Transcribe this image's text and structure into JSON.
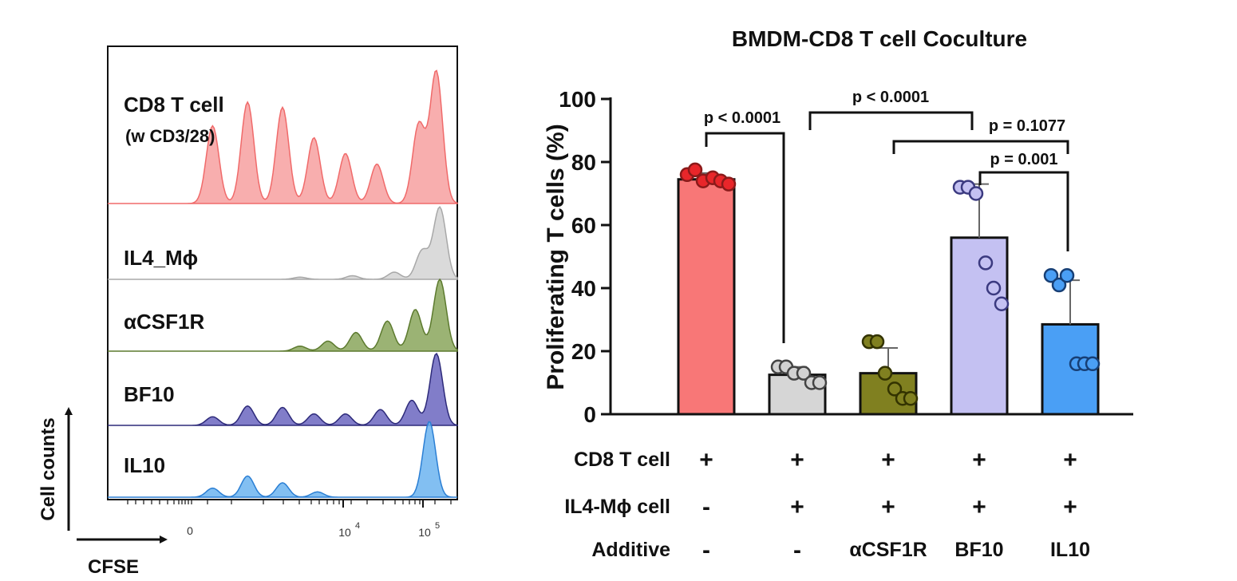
{
  "chart_data": [
    {
      "type": "histogram-stack",
      "xlabel": "CFSE",
      "ylabel": "Cell counts",
      "xaxis": "biexponential",
      "tick_labels": [
        "0",
        "10",
        "4",
        "10",
        "5"
      ],
      "series": [
        {
          "name": "CD8 T cell",
          "subname": "(w CD3/28)",
          "color": "#f06a6a",
          "fill": "#f7a0a0",
          "peaks": [
            {
              "x": 0.3,
              "h": 0.59
            },
            {
              "x": 0.4,
              "h": 0.77
            },
            {
              "x": 0.5,
              "h": 0.73
            },
            {
              "x": 0.59,
              "h": 0.5
            },
            {
              "x": 0.68,
              "h": 0.38
            },
            {
              "x": 0.77,
              "h": 0.3
            },
            {
              "x": 0.89,
              "h": 0.6
            },
            {
              "x": 0.94,
              "h": 1.0
            }
          ]
        },
        {
          "name": "IL4_Mϕ",
          "color": "#a8a8a8",
          "fill": "#d3d3d3",
          "peaks": [
            {
              "x": 0.55,
              "h": 0.03
            },
            {
              "x": 0.7,
              "h": 0.05
            },
            {
              "x": 0.82,
              "h": 0.1
            },
            {
              "x": 0.9,
              "h": 0.4
            },
            {
              "x": 0.95,
              "h": 1.0
            }
          ]
        },
        {
          "name": "αCSF1R",
          "color": "#5c7a2e",
          "fill": "#8aa65c",
          "peaks": [
            {
              "x": 0.55,
              "h": 0.07
            },
            {
              "x": 0.63,
              "h": 0.14
            },
            {
              "x": 0.71,
              "h": 0.26
            },
            {
              "x": 0.8,
              "h": 0.42
            },
            {
              "x": 0.88,
              "h": 0.58
            },
            {
              "x": 0.95,
              "h": 1.0
            }
          ]
        },
        {
          "name": "BF10",
          "color": "#2d2a7a",
          "fill": "#6b66c0",
          "peaks": [
            {
              "x": 0.3,
              "h": 0.12
            },
            {
              "x": 0.4,
              "h": 0.27
            },
            {
              "x": 0.5,
              "h": 0.25
            },
            {
              "x": 0.59,
              "h": 0.16
            },
            {
              "x": 0.68,
              "h": 0.16
            },
            {
              "x": 0.78,
              "h": 0.22
            },
            {
              "x": 0.87,
              "h": 0.35
            },
            {
              "x": 0.94,
              "h": 1.0
            }
          ]
        },
        {
          "name": "IL10",
          "color": "#2b7fd4",
          "fill": "#6cb4f0",
          "peaks": [
            {
              "x": 0.3,
              "h": 0.12
            },
            {
              "x": 0.4,
              "h": 0.28
            },
            {
              "x": 0.5,
              "h": 0.19
            },
            {
              "x": 0.6,
              "h": 0.07
            },
            {
              "x": 0.92,
              "h": 1.0
            }
          ]
        }
      ]
    },
    {
      "type": "bar",
      "title": "BMDM-CD8 T cell Coculture",
      "ylabel": "Proliferating T cells (%)",
      "ylim": [
        0,
        100
      ],
      "yticks": [
        0,
        20,
        40,
        60,
        80,
        100
      ],
      "bars": [
        {
          "mean": 74.5,
          "sd": 2,
          "fill": "#f87777",
          "stroke": "#111111",
          "dots": [
            76,
            77.5,
            74,
            75,
            74,
            73
          ],
          "dot_fill": "#e8262a",
          "dot_stroke": "#8b1a1a"
        },
        {
          "mean": 12.5,
          "sd": 2.5,
          "fill": "#d6d6d6",
          "stroke": "#111111",
          "dots": [
            15,
            15,
            13,
            13,
            10,
            10
          ],
          "dot_fill": "#d2d2d2",
          "dot_stroke": "#444444"
        },
        {
          "mean": 13,
          "sd": 8,
          "fill": "#808020",
          "stroke": "#111111",
          "dots": [
            23,
            23,
            13,
            8,
            5,
            5
          ],
          "dot_fill": "#808020",
          "dot_stroke": "#333300"
        },
        {
          "mean": 56,
          "sd": 17,
          "fill": "#c4c1f2",
          "stroke": "#111111",
          "dots": [
            72,
            72,
            70,
            48,
            40,
            35
          ],
          "dot_fill": "#c4c1f2",
          "dot_stroke": "#3b3a80"
        },
        {
          "mean": 28.5,
          "sd": 14,
          "fill": "#4a9ff5",
          "stroke": "#111111",
          "dots": [
            44,
            41,
            44,
            16,
            16,
            16
          ],
          "dot_fill": "#4a9ff5",
          "dot_stroke": "#173f75"
        }
      ],
      "stat_annotations": [
        {
          "label": "p < 0.0001",
          "from_bar": 0,
          "to_bar": 1
        },
        {
          "label": "p < 0.0001",
          "from_bar": 1,
          "to_bar": 3
        },
        {
          "label": "p = 0.1077",
          "from_bar": 2,
          "to_bar": 4
        },
        {
          "label": "p = 0.001",
          "from_bar": 3,
          "to_bar": 4
        }
      ],
      "conditions": [
        {
          "label": "CD8 T cell",
          "values": [
            "+",
            "+",
            "+",
            "+",
            "+"
          ]
        },
        {
          "label": "IL4-Mϕ  cell",
          "values": [
            "-",
            "+",
            "+",
            "+",
            "+"
          ]
        },
        {
          "label": "Additive",
          "values": [
            "-",
            "-",
            "αCSF1R",
            "BF10",
            "IL10"
          ]
        }
      ]
    }
  ]
}
